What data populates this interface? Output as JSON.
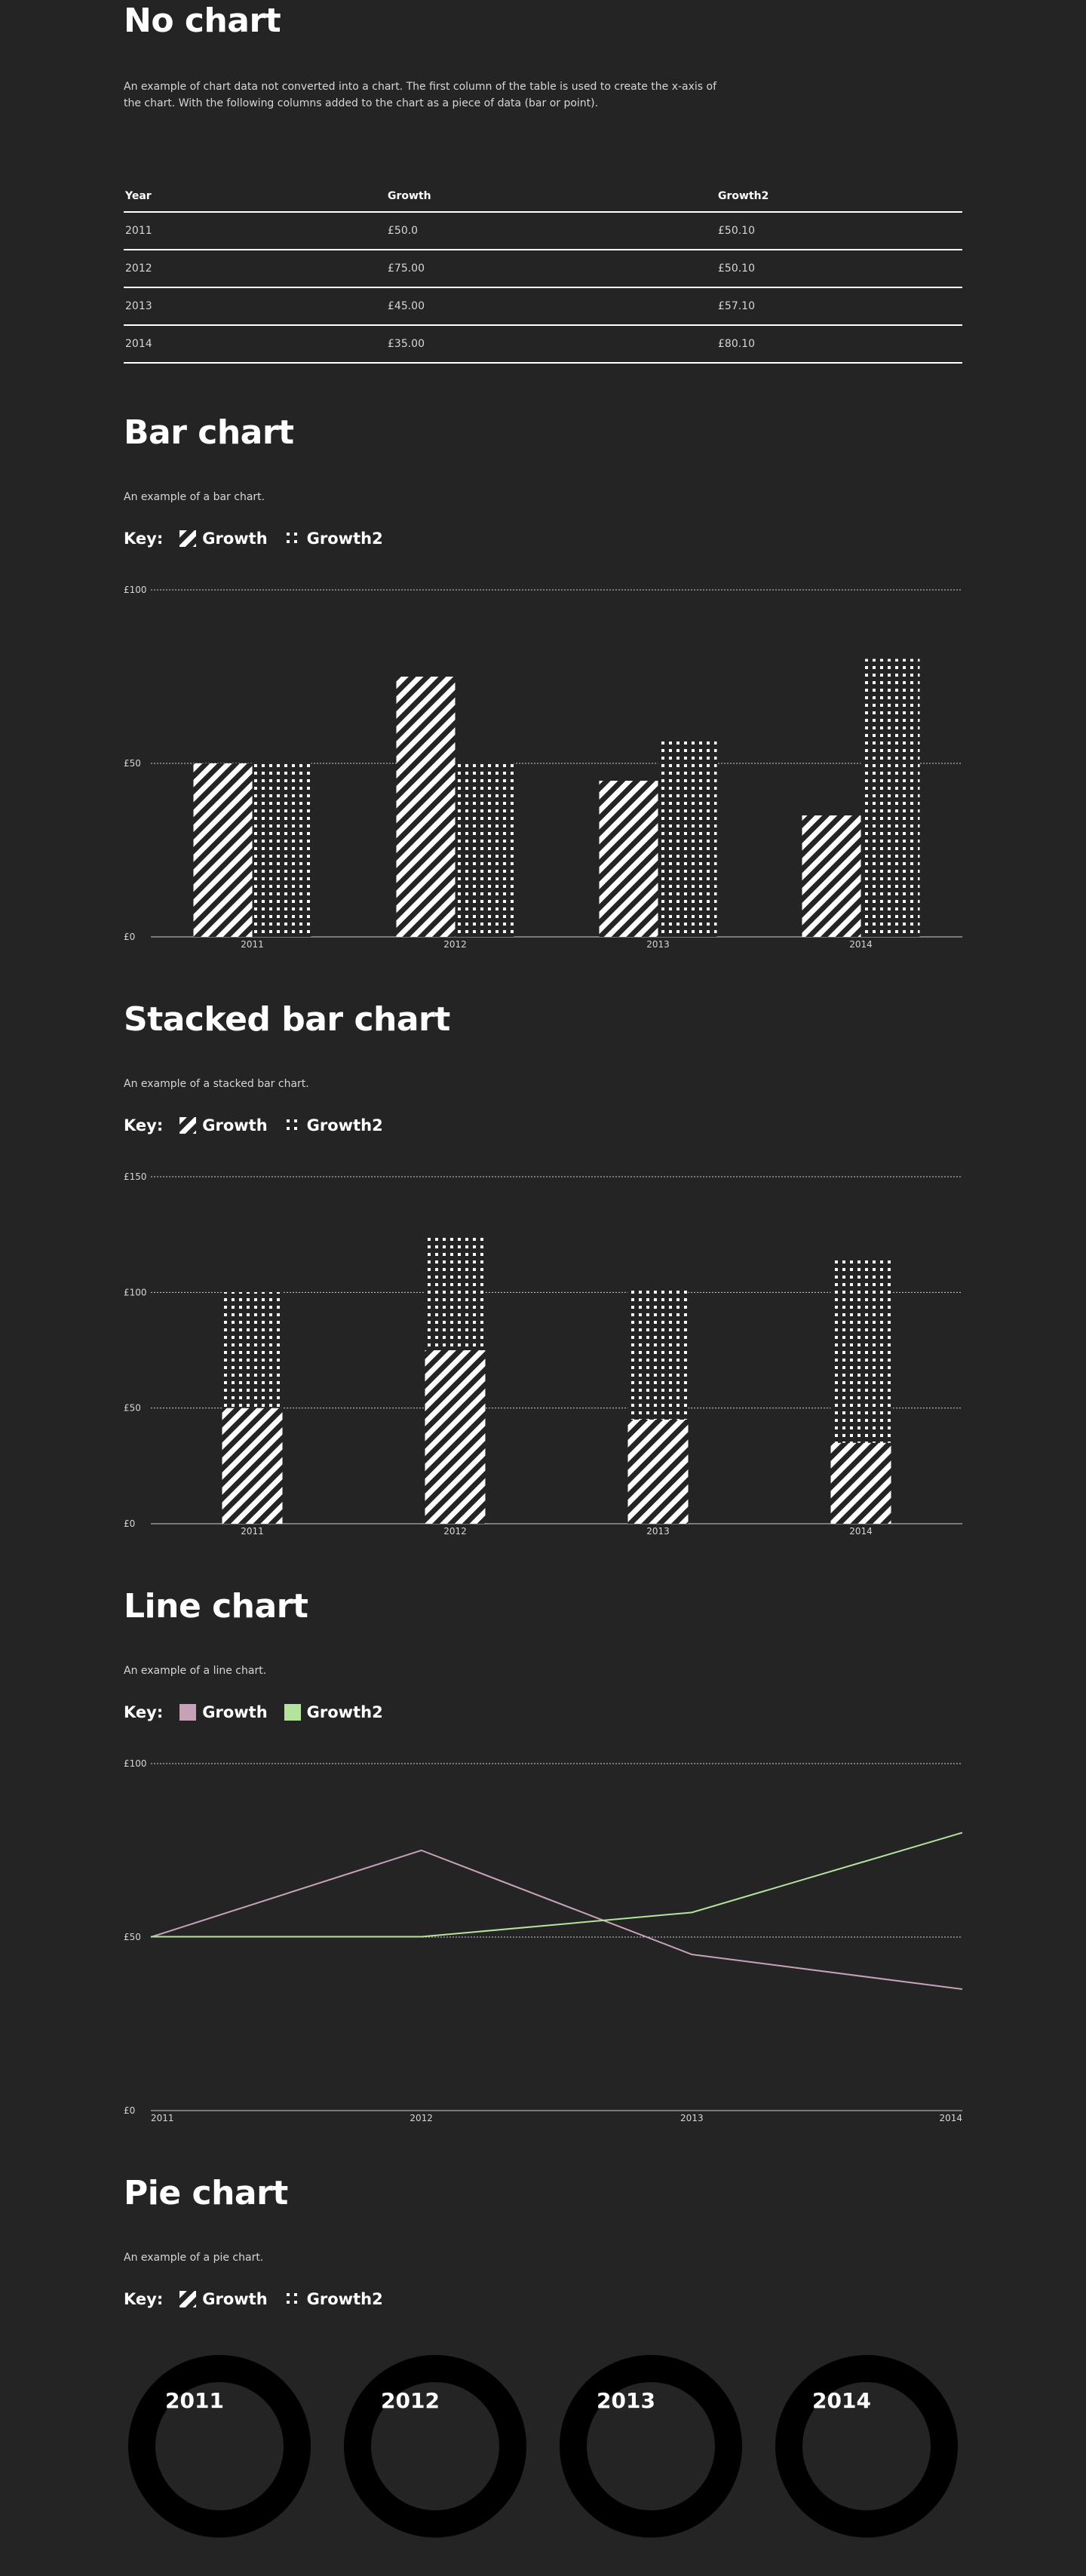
{
  "sections": {
    "no_chart": {
      "title": "No chart",
      "description": "An example of chart data not converted into a chart. The first column of the table is used to create the x-axis of the chart. With the following columns added to the chart as a piece of data (bar or point).",
      "table": {
        "headers": [
          "Year",
          "Growth",
          "Growth2"
        ],
        "rows": [
          [
            "2011",
            "£50.0",
            "£50.10"
          ],
          [
            "2012",
            "£75.00",
            "£50.10"
          ],
          [
            "2013",
            "£45.00",
            "£57.10"
          ],
          [
            "2014",
            "£35.00",
            "£80.10"
          ]
        ]
      }
    },
    "bar_chart": {
      "title": "Bar chart",
      "description": "An example of a bar chart.",
      "key_label": "Key:",
      "legend": [
        "Growth",
        "Growth2"
      ]
    },
    "stacked_bar_chart": {
      "title": "Stacked bar chart",
      "description": "An example of a stacked bar chart.",
      "key_label": "Key:",
      "legend": [
        "Growth",
        "Growth2"
      ]
    },
    "line_chart": {
      "title": "Line chart",
      "description": "An example of a line chart.",
      "key_label": "Key:",
      "legend": [
        "Growth",
        "Growth2"
      ]
    },
    "pie_chart": {
      "title": "Pie chart",
      "description": "An example of a pie chart.",
      "key_label": "Key:",
      "legend": [
        "Growth",
        "Growth2"
      ],
      "years": [
        "2011",
        "2012",
        "2013",
        "2014"
      ]
    }
  },
  "colors": {
    "background": "#242424",
    "text": "#ffffff",
    "line_growth": "#c7a1b8",
    "line_growth2": "#b4e39e",
    "pie_ring": "#000000"
  },
  "chart_data": [
    {
      "type": "bar",
      "title": "Bar chart",
      "categories": [
        "2011",
        "2012",
        "2013",
        "2014"
      ],
      "series": [
        {
          "name": "Growth",
          "values": [
            50,
            75,
            45,
            35
          ]
        },
        {
          "name": "Growth2",
          "values": [
            50.1,
            50.1,
            57.1,
            80.1
          ]
        }
      ],
      "ylim": [
        0,
        100
      ],
      "yticks": [
        "£0",
        "£50",
        "£100"
      ],
      "grid": true
    },
    {
      "type": "bar",
      "stacked": true,
      "title": "Stacked bar chart",
      "categories": [
        "2011",
        "2012",
        "2013",
        "2014"
      ],
      "series": [
        {
          "name": "Growth",
          "values": [
            50,
            75,
            45,
            35
          ]
        },
        {
          "name": "Growth2",
          "values": [
            50.1,
            50.1,
            57.1,
            80.1
          ]
        }
      ],
      "ylim": [
        0,
        150
      ],
      "yticks": [
        "£0",
        "£50",
        "£100",
        "£150"
      ],
      "grid": true
    },
    {
      "type": "line",
      "title": "Line chart",
      "categories": [
        "2011",
        "2012",
        "2013",
        "2014"
      ],
      "series": [
        {
          "name": "Growth",
          "values": [
            50,
            75,
            45,
            35
          ]
        },
        {
          "name": "Growth2",
          "values": [
            50.1,
            50.1,
            57.1,
            80.1
          ]
        }
      ],
      "ylim": [
        0,
        100
      ],
      "yticks": [
        "£0",
        "£50",
        "£100"
      ],
      "grid": true
    }
  ]
}
